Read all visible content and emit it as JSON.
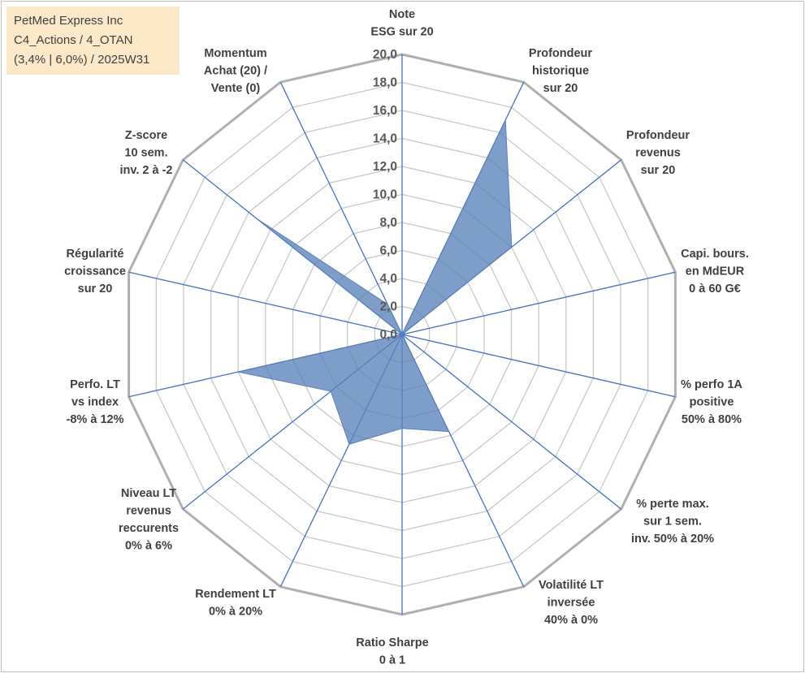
{
  "info": {
    "line1": "PetMed Express Inc",
    "line2": "C4_Actions / 4_OTAN",
    "line3": "(3,4% | 6,0%) / 2025W31"
  },
  "chart_data": {
    "type": "radar",
    "axes": [
      [
        "Note",
        "ESG sur 20"
      ],
      [
        "Profondeur",
        "historique",
        "sur 20"
      ],
      [
        "Profondeur",
        "revenus",
        "sur 20"
      ],
      [
        "Capi. bours.",
        "en MdEUR",
        "0 à 60 G€"
      ],
      [
        "% perfo 1A",
        "positive",
        "50% à 80%"
      ],
      [
        "% perte max.",
        "sur 1 sem.",
        "inv. 50% à 20%"
      ],
      [
        "Volatilité LT",
        "inversée",
        "40% à 0%"
      ],
      [
        "Ratio Sharpe",
        "0 à 1"
      ],
      [
        "Rendement LT",
        "0% à 20%"
      ],
      [
        "Niveau LT",
        "revenus",
        "reccurents",
        "0% à 6%"
      ],
      [
        "Perfo. LT",
        "vs index",
        "-8% à 12%"
      ],
      [
        "Régularité",
        "croissance",
        "sur 20"
      ],
      [
        "Z-score",
        "10 sem.",
        "inv. 2 à -2"
      ],
      [
        "Momentum",
        "Achat (20) /",
        "Vente (0)"
      ]
    ],
    "values": [
      0.0,
      17.0,
      10.0,
      0.0,
      0.0,
      0.0,
      7.7,
      6.7,
      8.7,
      6.5,
      12.0,
      0.0,
      13.3,
      2.4
    ],
    "rmin": 0,
    "rmax": 20,
    "ticks": [
      "0,0",
      "2,0",
      "4,0",
      "6,0",
      "8,0",
      "10,0",
      "12,0",
      "14,0",
      "16,0",
      "18,0",
      "20,0"
    ],
    "fill_color": "#5a82b8",
    "fill_opacity": 0.78,
    "grid_color": "#c8c8c8",
    "outer_ring_color": "#b0b0b0",
    "spoke_color": "#4472c4"
  }
}
